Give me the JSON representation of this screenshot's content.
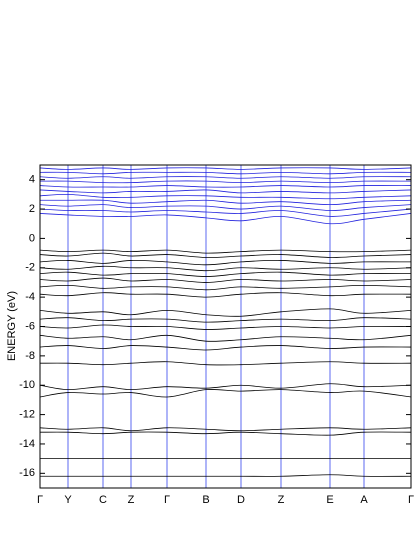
{
  "chart_data": {
    "type": "line",
    "y_label": "ENERGY (eV)",
    "x": [
      0,
      0.28,
      0.63,
      0.91,
      1.27,
      1.66,
      2.01,
      2.41,
      2.9,
      3.24,
      3.71
    ],
    "xlim": [
      0,
      3.71
    ],
    "xticks": [
      {
        "value": 0,
        "label": "Γ"
      },
      {
        "value": 0.28,
        "label": "Y"
      },
      {
        "value": 0.63,
        "label": "C"
      },
      {
        "value": 0.91,
        "label": "Z"
      },
      {
        "value": 1.27,
        "label": "Γ"
      },
      {
        "value": 1.66,
        "label": "B"
      },
      {
        "value": 2.01,
        "label": "D"
      },
      {
        "value": 2.41,
        "label": "Z"
      },
      {
        "value": 2.9,
        "label": "E"
      },
      {
        "value": 3.24,
        "label": "A"
      },
      {
        "value": 3.71,
        "label": "Γ"
      }
    ],
    "grid_color": "#3344ee",
    "ylim": [
      -17,
      5
    ],
    "yticks": [
      -16,
      -14,
      -12,
      -10,
      -8,
      -6,
      -4,
      -2,
      0,
      2,
      4
    ],
    "series": [
      {
        "color": "#2222dd",
        "values": [
          1.7,
          1.6,
          1.5,
          1.5,
          1.6,
          1.4,
          1.2,
          1.5,
          1.0,
          1.3,
          1.7
        ]
      },
      {
        "color": "#2222dd",
        "values": [
          2.0,
          1.9,
          1.9,
          1.8,
          1.9,
          1.8,
          1.7,
          1.9,
          1.5,
          1.7,
          2.0
        ]
      },
      {
        "color": "#2222dd",
        "values": [
          2.3,
          2.2,
          2.3,
          2.1,
          2.2,
          2.2,
          2.0,
          2.2,
          1.9,
          2.1,
          2.3
        ]
      },
      {
        "color": "#2222dd",
        "values": [
          2.6,
          2.6,
          2.6,
          2.4,
          2.5,
          2.6,
          2.4,
          2.5,
          2.3,
          2.5,
          2.6
        ]
      },
      {
        "color": "#2222dd",
        "values": [
          2.9,
          3.0,
          2.8,
          2.8,
          2.9,
          2.9,
          2.8,
          2.8,
          2.7,
          2.8,
          2.9
        ]
      },
      {
        "color": "#2222dd",
        "values": [
          3.3,
          3.2,
          3.1,
          3.2,
          3.2,
          3.3,
          3.1,
          3.2,
          3.1,
          3.2,
          3.3
        ]
      },
      {
        "color": "#2222dd",
        "values": [
          3.6,
          3.5,
          3.5,
          3.5,
          3.6,
          3.5,
          3.5,
          3.6,
          3.5,
          3.6,
          3.6
        ]
      },
      {
        "color": "#2222dd",
        "values": [
          3.9,
          3.9,
          3.8,
          3.8,
          3.9,
          3.9,
          3.8,
          3.9,
          3.8,
          3.9,
          3.9
        ]
      },
      {
        "color": "#2222dd",
        "values": [
          4.2,
          4.1,
          4.2,
          4.1,
          4.2,
          4.2,
          4.1,
          4.2,
          4.1,
          4.2,
          4.2
        ]
      },
      {
        "color": "#2222dd",
        "values": [
          4.5,
          4.5,
          4.4,
          4.5,
          4.5,
          4.5,
          4.4,
          4.5,
          4.4,
          4.5,
          4.5
        ]
      },
      {
        "color": "#2222dd",
        "values": [
          4.8,
          4.7,
          4.8,
          4.7,
          4.8,
          4.8,
          4.7,
          4.8,
          4.8,
          4.7,
          4.8
        ]
      },
      {
        "color": "#000000",
        "values": [
          -0.8,
          -0.9,
          -0.8,
          -0.9,
          -0.8,
          -1.0,
          -0.9,
          -0.8,
          -0.9,
          -0.9,
          -0.8
        ]
      },
      {
        "color": "#000000",
        "values": [
          -1.1,
          -1.2,
          -1.0,
          -1.2,
          -1.1,
          -1.3,
          -1.2,
          -1.1,
          -1.3,
          -1.2,
          -1.1
        ]
      },
      {
        "color": "#000000",
        "values": [
          -1.6,
          -1.5,
          -1.7,
          -1.5,
          -1.6,
          -1.8,
          -1.6,
          -1.5,
          -1.7,
          -1.6,
          -1.6
        ]
      },
      {
        "color": "#000000",
        "values": [
          -2.0,
          -2.1,
          -1.9,
          -2.0,
          -2.0,
          -2.2,
          -2.0,
          -2.1,
          -2.0,
          -2.1,
          -2.0
        ]
      },
      {
        "color": "#000000",
        "values": [
          -2.4,
          -2.3,
          -2.5,
          -2.4,
          -2.4,
          -2.6,
          -2.4,
          -2.3,
          -2.5,
          -2.4,
          -2.4
        ]
      },
      {
        "color": "#000000",
        "values": [
          -2.8,
          -2.9,
          -2.7,
          -2.9,
          -2.8,
          -3.0,
          -2.8,
          -2.9,
          -2.8,
          -2.9,
          -2.8
        ]
      },
      {
        "color": "#000000",
        "values": [
          -3.3,
          -3.2,
          -3.4,
          -3.3,
          -3.3,
          -3.5,
          -3.3,
          -3.4,
          -3.3,
          -3.2,
          -3.3
        ]
      },
      {
        "color": "#000000",
        "values": [
          -3.8,
          -3.9,
          -3.7,
          -3.8,
          -3.8,
          -4.0,
          -3.8,
          -3.7,
          -3.9,
          -3.8,
          -3.8
        ]
      },
      {
        "color": "#000000",
        "values": [
          -4.9,
          -5.1,
          -5.0,
          -5.2,
          -4.9,
          -5.2,
          -5.3,
          -5.0,
          -4.8,
          -5.1,
          -4.9
        ]
      },
      {
        "color": "#000000",
        "values": [
          -5.5,
          -5.4,
          -5.6,
          -5.5,
          -5.5,
          -5.7,
          -5.6,
          -5.5,
          -5.6,
          -5.4,
          -5.5
        ]
      },
      {
        "color": "#000000",
        "values": [
          -6.0,
          -6.1,
          -5.9,
          -6.0,
          -6.0,
          -6.2,
          -6.1,
          -6.0,
          -6.1,
          -6.0,
          -6.0
        ]
      },
      {
        "color": "#000000",
        "values": [
          -6.6,
          -6.8,
          -6.7,
          -6.9,
          -6.6,
          -7.0,
          -6.9,
          -6.7,
          -6.8,
          -6.9,
          -6.6
        ]
      },
      {
        "color": "#000000",
        "values": [
          -7.4,
          -7.3,
          -7.5,
          -7.3,
          -7.4,
          -7.6,
          -7.4,
          -7.3,
          -7.5,
          -7.4,
          -7.4
        ]
      },
      {
        "color": "#000000",
        "values": [
          -8.5,
          -8.5,
          -8.6,
          -8.5,
          -8.4,
          -8.6,
          -8.6,
          -8.5,
          -8.4,
          -8.5,
          -8.5
        ]
      },
      {
        "color": "#000000",
        "values": [
          -10.0,
          -10.3,
          -10.1,
          -10.3,
          -10.1,
          -10.2,
          -10.0,
          -10.2,
          -9.9,
          -10.1,
          -10.0
        ]
      },
      {
        "color": "#000000",
        "values": [
          -10.8,
          -10.5,
          -10.6,
          -10.5,
          -10.8,
          -10.3,
          -10.4,
          -10.3,
          -10.5,
          -10.4,
          -10.8
        ]
      },
      {
        "color": "#000000",
        "values": [
          -12.9,
          -13.0,
          -12.9,
          -13.1,
          -12.9,
          -13.0,
          -13.1,
          -13.0,
          -12.9,
          -13.0,
          -12.9
        ]
      },
      {
        "color": "#000000",
        "values": [
          -13.2,
          -13.2,
          -13.3,
          -13.2,
          -13.2,
          -13.3,
          -13.2,
          -13.3,
          -13.4,
          -13.2,
          -13.2
        ]
      },
      {
        "color": "#000000",
        "values": [
          -15.0,
          -15.0,
          -15.0,
          -15.0,
          -15.0,
          -15.0,
          -15.0,
          -15.0,
          -15.0,
          -15.0,
          -15.0
        ]
      },
      {
        "color": "#000000",
        "values": [
          -16.2,
          -16.2,
          -16.2,
          -16.2,
          -16.2,
          -16.2,
          -16.2,
          -16.2,
          -16.1,
          -16.2,
          -16.2
        ]
      }
    ]
  }
}
